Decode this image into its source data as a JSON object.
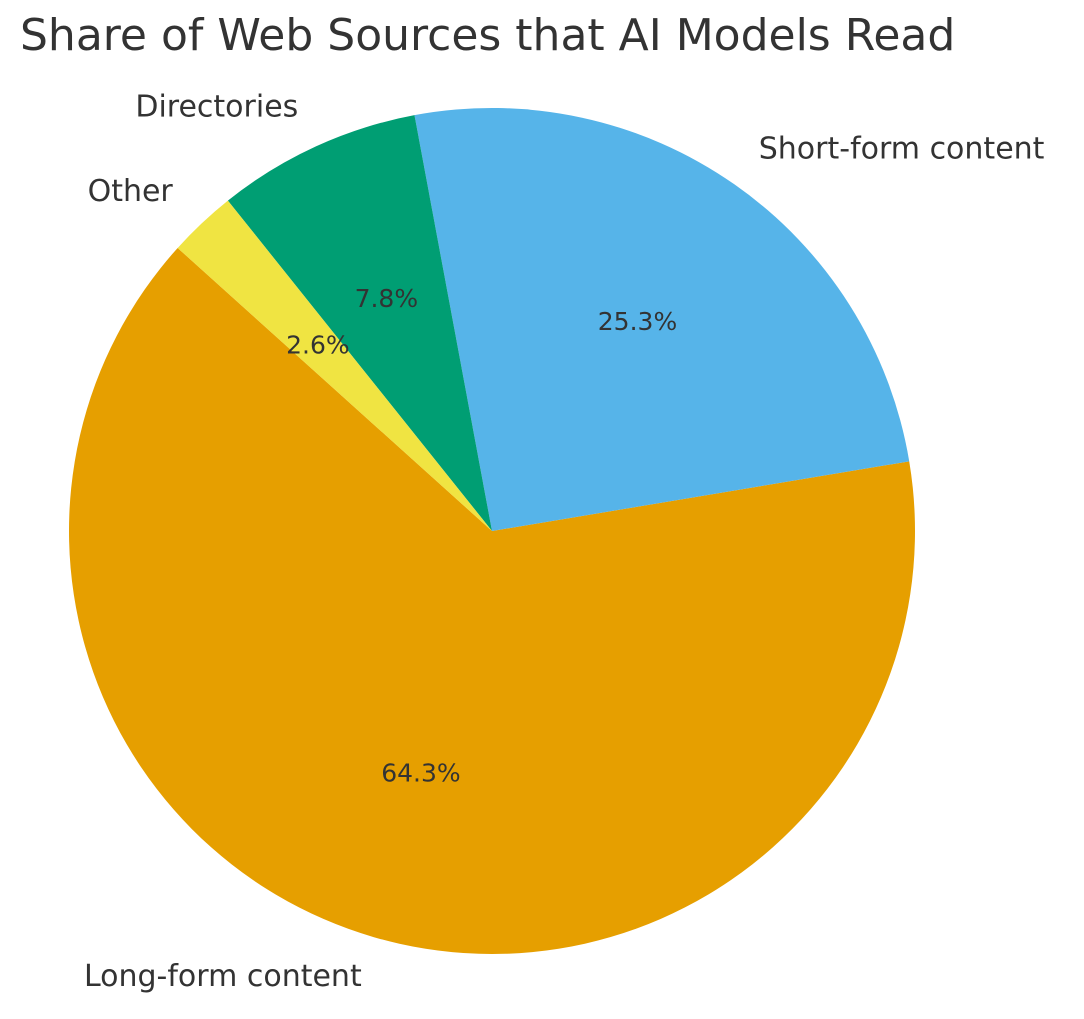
{
  "chart_data": {
    "type": "pie",
    "title": "Share of Web Sources that AI Models Read",
    "slices": [
      {
        "label": "Long-form content",
        "value": 64.3,
        "pct_label": "64.3%",
        "color": "#E69F00"
      },
      {
        "label": "Short-form content",
        "value": 25.3,
        "pct_label": "25.3%",
        "color": "#56B4E9"
      },
      {
        "label": "Directories",
        "value": 7.8,
        "pct_label": "7.8%",
        "color": "#009E73"
      },
      {
        "label": "Other",
        "value": 2.6,
        "pct_label": "2.6%",
        "color": "#F0E442"
      }
    ],
    "start_angle_deg": 138,
    "direction": "counterclockwise"
  }
}
